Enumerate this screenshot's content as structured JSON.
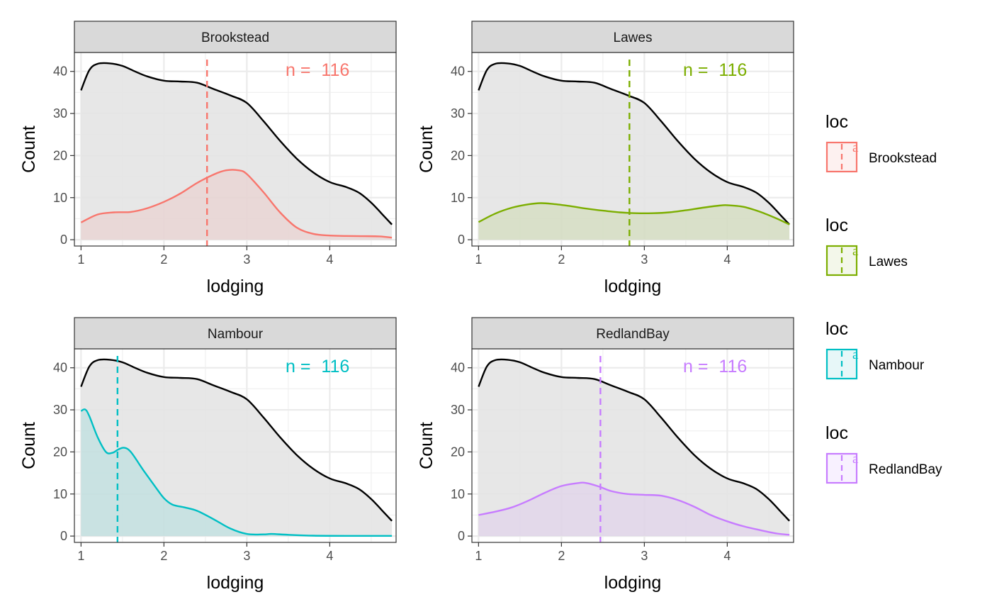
{
  "chart_data": {
    "type": "area",
    "layout": "facet 2x2",
    "facet_var": "loc",
    "xlabel": "lodging",
    "ylabel": "Count",
    "xlim": [
      0.92,
      4.8
    ],
    "ylim": [
      -1.5,
      44.5
    ],
    "x_ticks": [
      1,
      2,
      3,
      4
    ],
    "y_ticks": [
      0,
      10,
      20,
      30,
      40
    ],
    "grid": true,
    "legend_position": "right",
    "overall": {
      "name": "all",
      "color": "#000000",
      "fill": "#e4e4e4",
      "points": [
        [
          1.0,
          35.5
        ],
        [
          1.1,
          40.3
        ],
        [
          1.2,
          41.8
        ],
        [
          1.35,
          41.9
        ],
        [
          1.5,
          41.3
        ],
        [
          1.65,
          40.0
        ],
        [
          1.8,
          38.8
        ],
        [
          2.0,
          37.8
        ],
        [
          2.2,
          37.6
        ],
        [
          2.4,
          37.3
        ],
        [
          2.6,
          35.8
        ],
        [
          2.8,
          34.3
        ],
        [
          3.0,
          32.5
        ],
        [
          3.2,
          28.2
        ],
        [
          3.4,
          23.5
        ],
        [
          3.6,
          19.3
        ],
        [
          3.8,
          16.0
        ],
        [
          4.0,
          13.7
        ],
        [
          4.2,
          12.5
        ],
        [
          4.35,
          11.2
        ],
        [
          4.5,
          8.8
        ],
        [
          4.65,
          5.7
        ],
        [
          4.75,
          3.6
        ]
      ]
    },
    "panels": [
      {
        "facet": "Brookstead",
        "color": "#F8766D",
        "fill": "#f2dcdc",
        "n_label": "n = ",
        "n_value": "116",
        "mean_x": 2.52,
        "points": [
          [
            1.0,
            4.1
          ],
          [
            1.2,
            6.0
          ],
          [
            1.4,
            6.5
          ],
          [
            1.6,
            6.6
          ],
          [
            1.8,
            7.5
          ],
          [
            2.0,
            9.0
          ],
          [
            2.2,
            11.0
          ],
          [
            2.4,
            13.5
          ],
          [
            2.6,
            15.5
          ],
          [
            2.75,
            16.5
          ],
          [
            2.9,
            16.5
          ],
          [
            3.0,
            15.6
          ],
          [
            3.2,
            11.3
          ],
          [
            3.4,
            6.5
          ],
          [
            3.6,
            2.9
          ],
          [
            3.8,
            1.4
          ],
          [
            4.0,
            1.0
          ],
          [
            4.2,
            0.9
          ],
          [
            4.4,
            0.85
          ],
          [
            4.6,
            0.8
          ],
          [
            4.75,
            0.5
          ]
        ]
      },
      {
        "facet": "Lawes",
        "color": "#7CAE00",
        "fill": "#d9dfcb",
        "n_label": "n = ",
        "n_value": "116",
        "mean_x": 2.82,
        "points": [
          [
            1.0,
            4.2
          ],
          [
            1.2,
            6.2
          ],
          [
            1.4,
            7.6
          ],
          [
            1.6,
            8.4
          ],
          [
            1.75,
            8.7
          ],
          [
            1.9,
            8.5
          ],
          [
            2.1,
            8.0
          ],
          [
            2.3,
            7.4
          ],
          [
            2.5,
            6.9
          ],
          [
            2.7,
            6.5
          ],
          [
            2.9,
            6.3
          ],
          [
            3.1,
            6.3
          ],
          [
            3.3,
            6.5
          ],
          [
            3.5,
            7.0
          ],
          [
            3.7,
            7.6
          ],
          [
            3.9,
            8.1
          ],
          [
            4.0,
            8.2
          ],
          [
            4.2,
            7.8
          ],
          [
            4.4,
            6.6
          ],
          [
            4.6,
            5.0
          ],
          [
            4.75,
            3.6
          ]
        ]
      },
      {
        "facet": "Nambour",
        "color": "#00BFC4",
        "fill": "#cfe3e5",
        "n_label": "n = ",
        "n_value": "116",
        "mean_x": 1.44,
        "points": [
          [
            1.0,
            29.7
          ],
          [
            1.05,
            30.1
          ],
          [
            1.1,
            28.5
          ],
          [
            1.2,
            23.5
          ],
          [
            1.3,
            20.0
          ],
          [
            1.38,
            19.8
          ],
          [
            1.45,
            20.6
          ],
          [
            1.52,
            21.0
          ],
          [
            1.6,
            20.0
          ],
          [
            1.75,
            15.7
          ],
          [
            1.9,
            11.6
          ],
          [
            2.0,
            9.0
          ],
          [
            2.1,
            7.5
          ],
          [
            2.25,
            6.8
          ],
          [
            2.4,
            6.0
          ],
          [
            2.6,
            4.0
          ],
          [
            2.8,
            1.8
          ],
          [
            3.0,
            0.5
          ],
          [
            3.2,
            0.4
          ],
          [
            3.3,
            0.5
          ],
          [
            3.5,
            0.3
          ],
          [
            3.8,
            0.1
          ],
          [
            4.2,
            0.05
          ],
          [
            4.75,
            0.05
          ]
        ]
      },
      {
        "facet": "RedlandBay",
        "color": "#C77CFF",
        "fill": "#e3dbee",
        "n_label": "n = ",
        "n_value": "116",
        "mean_x": 2.47,
        "points": [
          [
            1.0,
            5.0
          ],
          [
            1.2,
            5.8
          ],
          [
            1.4,
            6.8
          ],
          [
            1.6,
            8.4
          ],
          [
            1.8,
            10.3
          ],
          [
            2.0,
            11.9
          ],
          [
            2.2,
            12.6
          ],
          [
            2.3,
            12.6
          ],
          [
            2.45,
            11.8
          ],
          [
            2.6,
            10.7
          ],
          [
            2.8,
            10.0
          ],
          [
            3.0,
            9.8
          ],
          [
            3.2,
            9.6
          ],
          [
            3.4,
            8.6
          ],
          [
            3.6,
            7.0
          ],
          [
            3.8,
            5.0
          ],
          [
            4.0,
            3.5
          ],
          [
            4.2,
            2.3
          ],
          [
            4.4,
            1.4
          ],
          [
            4.6,
            0.6
          ],
          [
            4.75,
            0.3
          ]
        ]
      }
    ],
    "legends": [
      {
        "title": "loc",
        "label": "Brookstead",
        "color": "#F8766D",
        "fill": "#fdf1f0"
      },
      {
        "title": "loc",
        "label": "Lawes",
        "color": "#7CAE00",
        "fill": "#f3f7ea"
      },
      {
        "title": "loc",
        "label": "Nambour",
        "color": "#00BFC4",
        "fill": "#e7f7f8"
      },
      {
        "title": "loc",
        "label": "RedlandBay",
        "color": "#C77CFF",
        "fill": "#f8f1ff"
      }
    ],
    "key_glyph": "a"
  }
}
